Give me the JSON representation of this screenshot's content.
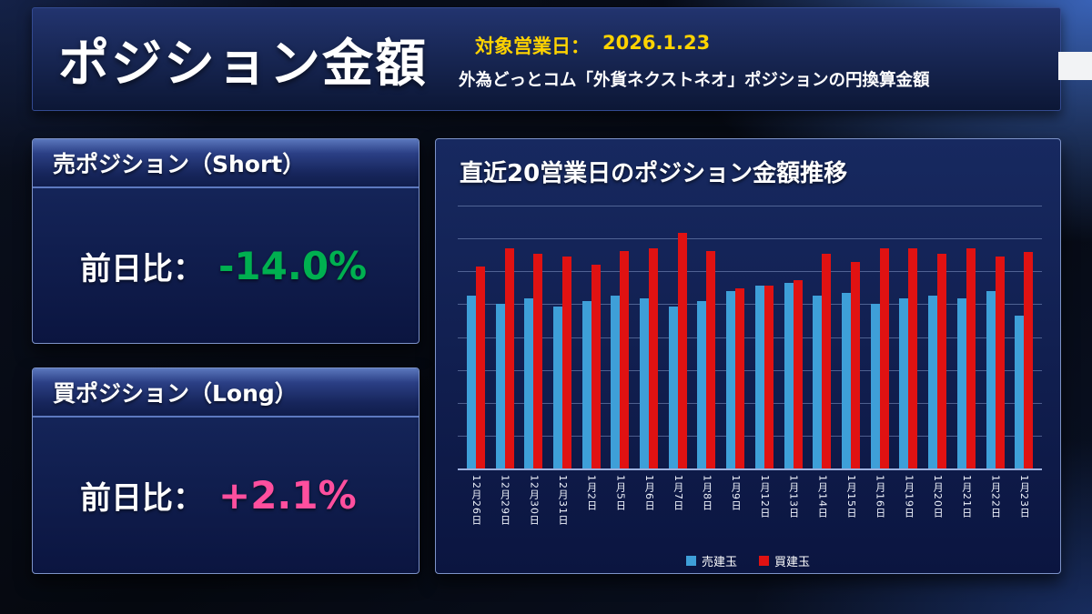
{
  "header": {
    "title": "ポジション金額",
    "target_date_label": "対象営業日：",
    "target_date": "2026.1.23",
    "subtitle": "外為どっとコム「外貨ネクストネオ」ポジションの円換算金額",
    "accent_color": "#ffd300"
  },
  "short_panel": {
    "title": "売ポジション（Short）",
    "label": "前日比：",
    "value": "-14.0%",
    "value_color": "#00b050"
  },
  "long_panel": {
    "title": "買ポジション（Long）",
    "label": "前日比：",
    "value": "+2.1%",
    "value_color": "#ff4f9e"
  },
  "chart_data": {
    "type": "bar",
    "title": "直近20営業日のポジション金額推移",
    "categories": [
      "12月26日",
      "12月29日",
      "12月30日",
      "12月31日",
      "1月2日",
      "1月5日",
      "1月6日",
      "1月7日",
      "1月8日",
      "1月9日",
      "1月12日",
      "1月13日",
      "1月14日",
      "1月15日",
      "1月16日",
      "1月19日",
      "1月20日",
      "1月21日",
      "1月22日",
      "1月23日"
    ],
    "series": [
      {
        "name": "売建玉",
        "color": "#3e9fd8",
        "values": [
          66,
          63,
          65,
          62,
          64,
          66,
          65,
          62,
          64,
          68,
          70,
          71,
          66,
          67,
          63,
          65,
          66,
          65,
          68,
          58.5
        ]
      },
      {
        "name": "買建玉",
        "color": "#e01212",
        "values": [
          77,
          84,
          82,
          81,
          78,
          83,
          84,
          90,
          83,
          69,
          70,
          72,
          82,
          79,
          84,
          84,
          82,
          84,
          81,
          82.7
        ]
      }
    ],
    "xlabel": "",
    "ylabel": "",
    "ylim": [
      0,
      100
    ],
    "y_ticks_labeled": false,
    "grid": true,
    "legend_position": "bottom"
  }
}
